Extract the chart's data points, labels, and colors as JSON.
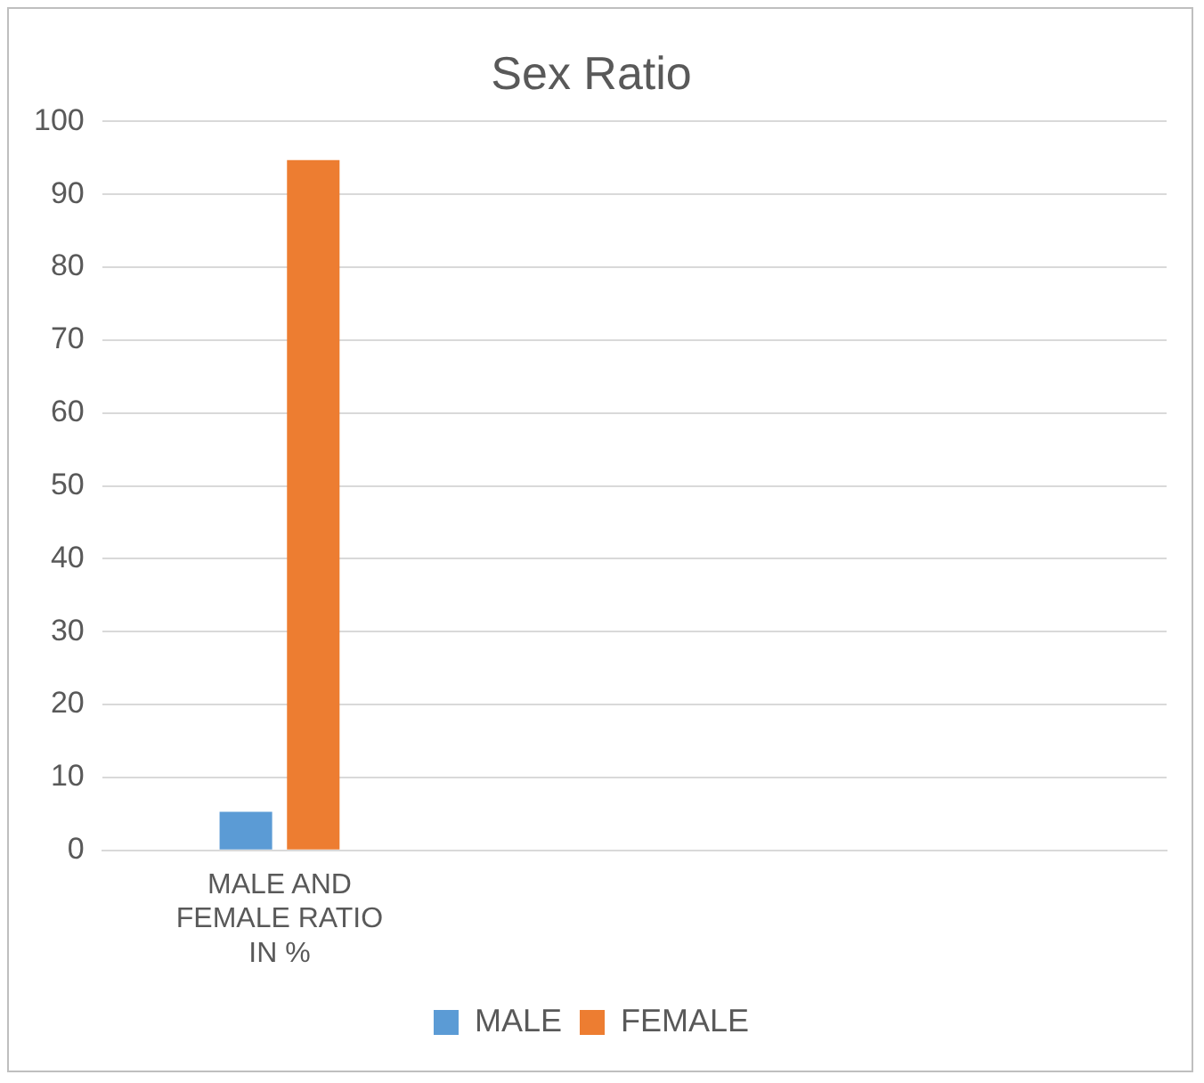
{
  "chart_data": {
    "type": "bar",
    "title": "Sex Ratio",
    "categories": [
      "MALE AND FEMALE RATIO IN %",
      null,
      null
    ],
    "series": [
      {
        "name": "MALE",
        "color": "#5b9bd5",
        "values": [
          5.3,
          null,
          null
        ]
      },
      {
        "name": "FEMALE",
        "color": "#ed7d31",
        "values": [
          94.7,
          null,
          null
        ]
      }
    ],
    "ylim": [
      0,
      100
    ],
    "yticks": [
      0,
      10,
      20,
      30,
      40,
      50,
      60,
      70,
      80,
      90,
      100
    ],
    "grid": "y",
    "legend": "bottom"
  }
}
